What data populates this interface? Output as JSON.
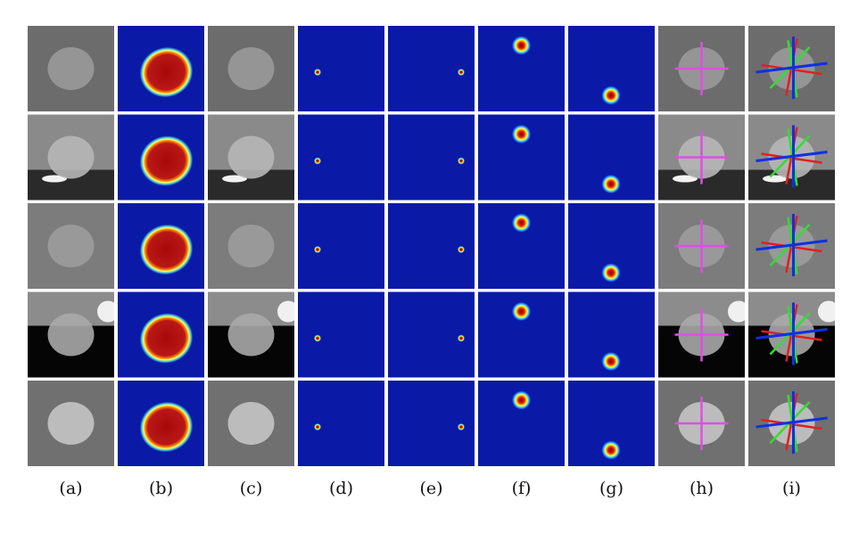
{
  "figure": {
    "columns": [
      "a",
      "b",
      "c",
      "d",
      "e",
      "f",
      "g",
      "h",
      "i"
    ],
    "captions": [
      "(a)",
      "(b)",
      "(c)",
      "(d)",
      "(e)",
      "(f)",
      "(g)",
      "(h)",
      "(i)"
    ],
    "rows": 5,
    "colors": {
      "heatmap_background": "#0a1aa6",
      "heatmap_hot": "#b01010",
      "cross_magenta": "#e04de6",
      "axis_red": "#e02020",
      "axis_green": "#33dd33",
      "axis_blue": "#1030e0"
    }
  }
}
